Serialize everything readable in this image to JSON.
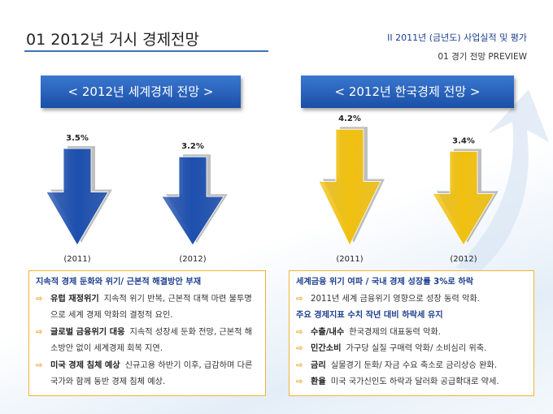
{
  "header": {
    "title": "01  2012년 거시 경제전망",
    "section": "II  2011년 (금년도) 사업실적 및 평가",
    "subsection": "01  경기 전망 PREVIEW"
  },
  "panels": [
    {
      "title": "<  2012년 세계경제 전망  >",
      "categories": [
        "(2011)",
        "(2012)"
      ],
      "values": [
        3.5,
        3.2
      ],
      "value_labels": [
        "3.5%",
        "3.2%"
      ],
      "color": "#1d4fae",
      "notes": [
        {
          "heading": "지속적 경제 둔화와 위기/ 근본적 해결방안 부재"
        },
        {
          "label": "유럽 재정위기",
          "text": "지속적 위기 반복, 근본적 대책 마련 불투명으로 세계 경제 악화의 결정적 요인."
        },
        {
          "label": "글로벌 금융위기 대응",
          "text": "지속적 성장세 둔화 전망, 근본적 해소방안 없이 세계경제 회복 지연."
        },
        {
          "label": "미국 경제 침체 예상",
          "text": "신규고용 하반기 이후, 급감하며 다른 국가와 함께 동반 경제 침체 예상."
        }
      ]
    },
    {
      "title": "<  2012년 한국경제 전망  >",
      "categories": [
        "(2011)",
        "(2012)"
      ],
      "values": [
        4.2,
        3.4
      ],
      "value_labels": [
        "4.2%",
        "3.4%"
      ],
      "color": "#f0c010",
      "notes": [
        {
          "heading": "세계금융 위기 여파 / 국내 경제 성장률 3%로 하락"
        },
        {
          "text": "2011년 세계 금융위기 영향으로 성장 동력 악화."
        },
        {
          "heading": "주요 경제지표 수치 작년 대비 하락세 유지"
        },
        {
          "label": "수출/내수",
          "text": "한국경제의 대표동력 악화."
        },
        {
          "label": "민간소비",
          "text": "가구당 실질 구매력 악화/ 소비심리 위축."
        },
        {
          "label": "금리",
          "text": "실물경기 둔화/ 자금 수요 축소로 금리상승 완화."
        },
        {
          "label": "환율",
          "text": "미국 국가신인도 하락과 달러화 공급확대로 약세."
        }
      ]
    }
  ]
}
